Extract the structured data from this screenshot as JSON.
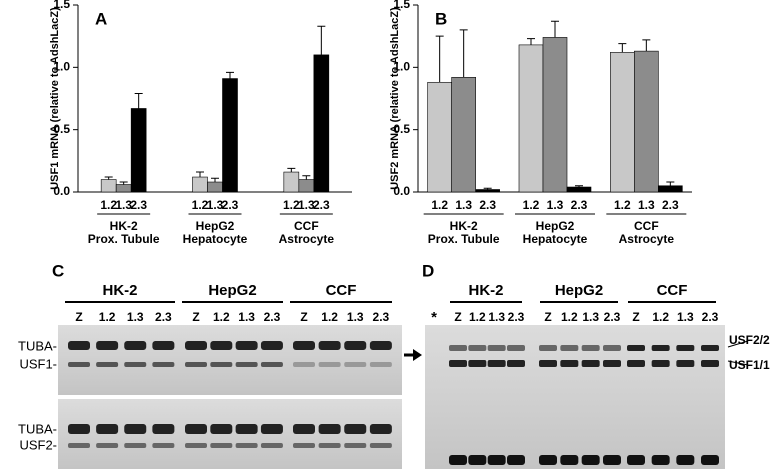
{
  "chart_data": [
    {
      "type": "bar",
      "label": "A",
      "ylabel": "USF1 mRNA (relative to AdshLacZ)",
      "categories": [
        "HK-2",
        "HepG2",
        "CCF"
      ],
      "subcategories": [
        "Prox. Tubule",
        "Hepatocyte",
        "Astrocyte"
      ],
      "series": [
        {
          "name": "1.2",
          "color": "#c8c8c8",
          "values": [
            0.1,
            0.12,
            0.16
          ],
          "errors": [
            0.02,
            0.04,
            0.03
          ]
        },
        {
          "name": "1.3",
          "color": "#8c8c8c",
          "values": [
            0.06,
            0.08,
            0.1
          ],
          "errors": [
            0.02,
            0.03,
            0.03
          ]
        },
        {
          "name": "2.3",
          "color": "#000000",
          "values": [
            0.67,
            0.91,
            1.1
          ],
          "errors": [
            0.12,
            0.05,
            0.23
          ]
        }
      ],
      "ylim": [
        0,
        1.5
      ],
      "yticks": [
        {
          "value": 0,
          "label": "0.0"
        },
        0.5,
        {
          "value": 1,
          "label": "1.0"
        },
        1.5
      ]
    },
    {
      "type": "bar",
      "label": "B",
      "ylabel": "USF2 mRNA (relative to AdshLacZ)",
      "categories": [
        "HK-2",
        "HepG2",
        "CCF"
      ],
      "subcategories": [
        "Prox. Tubule",
        "Hepatocyte",
        "Astrocyte"
      ],
      "series": [
        {
          "name": "1.2",
          "color": "#c8c8c8",
          "values": [
            0.88,
            1.18,
            1.12
          ],
          "errors": [
            0.37,
            0.05,
            0.07
          ]
        },
        {
          "name": "1.3",
          "color": "#8c8c8c",
          "values": [
            0.92,
            1.24,
            1.13
          ],
          "errors": [
            0.38,
            0.13,
            0.09
          ]
        },
        {
          "name": "2.3",
          "color": "#000000",
          "values": [
            0.02,
            0.04,
            0.05
          ],
          "errors": [
            0.01,
            0.01,
            0.03
          ]
        }
      ],
      "ylim": [
        0,
        1.5
      ],
      "yticks": [
        {
          "value": 0,
          "label": "0.0"
        },
        0.5,
        {
          "value": 1,
          "label": "1.0"
        },
        1.5
      ]
    }
  ],
  "gels": [
    {
      "label": "C",
      "groups": [
        "HK-2",
        "HepG2",
        "CCF"
      ],
      "lanes": [
        "Z",
        "1.2",
        "1.3",
        "2.3"
      ],
      "rows": [
        "TUBA-",
        "USF1-",
        "TUBA-",
        "USF2-"
      ]
    },
    {
      "label": "D",
      "marker": "*",
      "groups": [
        "HK-2",
        "HepG2",
        "CCF"
      ],
      "lanes": [
        "Z",
        "1.2",
        "1.3",
        "2.3"
      ],
      "bands": [
        "USF2/2",
        "USF1/1"
      ]
    }
  ]
}
